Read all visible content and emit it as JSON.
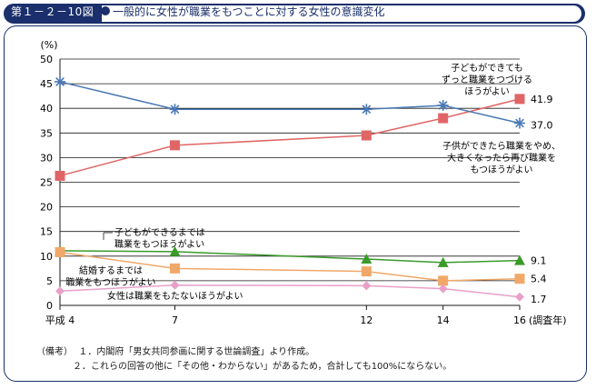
{
  "title_label": "第１－２－10図",
  "title_text": "一般的に女性が職業をもつことに対する女性の意識変化",
  "chart_data": {
    "type": "line",
    "title": "一般的に女性が職業をもつことに対する女性の意識変化",
    "ylabel": "(%)",
    "xlabel": "(調査年)",
    "ylim": [
      0,
      50
    ],
    "yticks": [
      0,
      5,
      10,
      15,
      20,
      25,
      30,
      35,
      40,
      45,
      50
    ],
    "x": [
      4,
      7,
      12,
      14,
      16
    ],
    "xtick_labels": [
      "平成 4",
      "7",
      "12",
      "14",
      "16"
    ],
    "series": [
      {
        "name": "子どもができてもずっと職業をつづけるほうがよい",
        "values": [
          26.3,
          32.5,
          34.5,
          38.0,
          41.9
        ],
        "color": "#e06666",
        "marker": "square",
        "end_label": "41.9"
      },
      {
        "name": "子供ができたら職業をやめ、大きくなったら再び職業をもつほうがよい",
        "values": [
          45.4,
          39.8,
          39.8,
          40.6,
          37.0
        ],
        "color": "#4a78b5",
        "marker": "asterisk",
        "end_label": "37.0"
      },
      {
        "name": "子どもができるまでは職業をもつほうがよい",
        "values": [
          11.1,
          10.9,
          9.4,
          8.7,
          9.1
        ],
        "color": "#3a9a2a",
        "marker": "triangle",
        "end_label": "9.1"
      },
      {
        "name": "結婚するまでは職業をもつほうがよい",
        "values": [
          10.8,
          7.5,
          6.9,
          5.0,
          5.4
        ],
        "color": "#f0a868",
        "marker": "square",
        "end_label": "5.4"
      },
      {
        "name": "女性は職業をもたないほうがよい",
        "values": [
          2.9,
          4.1,
          4.0,
          3.4,
          1.7
        ],
        "color": "#e8a0c8",
        "marker": "diamond",
        "end_label": "1.7"
      }
    ],
    "grid": true
  },
  "annotations": {
    "continue_1": "子どもができても",
    "continue_2": "ずっと職業をつづける",
    "continue_3": "ほうがよい",
    "return_1": "子供ができたら職業をやめ、",
    "return_2": "大きくなったら再び職業を",
    "return_3": "もつほうがよい",
    "untilchild_1": "子どもができるまでは",
    "untilchild_2": "職業をもつほうがよい",
    "untilmarriage_1": "結婚するまでは",
    "untilmarriage_2": "職業をもつほうがよい",
    "notwork": "女性は職業をもたないほうがよい"
  },
  "notes": {
    "label": "（備考）",
    "note1": "１．内閣府「男女共同参画に関する世論調査」より作成。",
    "note2": "２．これらの回答の他に「その他・わからない」があるため，合計しても100%にならない。"
  }
}
